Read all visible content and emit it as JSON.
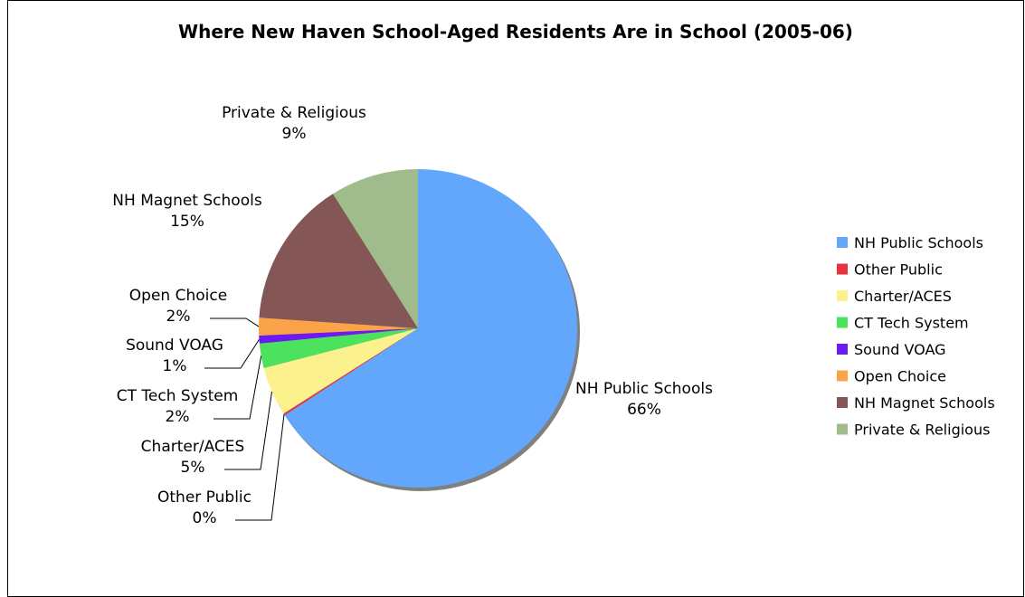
{
  "chart_data": {
    "type": "pie",
    "title": "Where New Haven School-Aged Residents Are in School (2005-06)",
    "legend_position": "right",
    "slices": [
      {
        "name": "NH Public Schools",
        "value": 66,
        "label": "66%",
        "color": "#63a7fd"
      },
      {
        "name": "Other Public",
        "value": 0.2,
        "label": "0%",
        "color": "#e8323c"
      },
      {
        "name": "Charter/ACES",
        "value": 5,
        "label": "5%",
        "color": "#fbf18d"
      },
      {
        "name": "CT Tech System",
        "value": 2.5,
        "label": "2%",
        "color": "#4de25e"
      },
      {
        "name": "Sound VOAG",
        "value": 0.8,
        "label": "1%",
        "color": "#6d19f4"
      },
      {
        "name": "Open Choice",
        "value": 1.8,
        "label": "2%",
        "color": "#fba348"
      },
      {
        "name": "NH Magnet Schools",
        "value": 15,
        "label": "15%",
        "color": "#855656"
      },
      {
        "name": "Private & Religious",
        "value": 9,
        "label": "9%",
        "color": "#a0bc8c"
      }
    ]
  }
}
